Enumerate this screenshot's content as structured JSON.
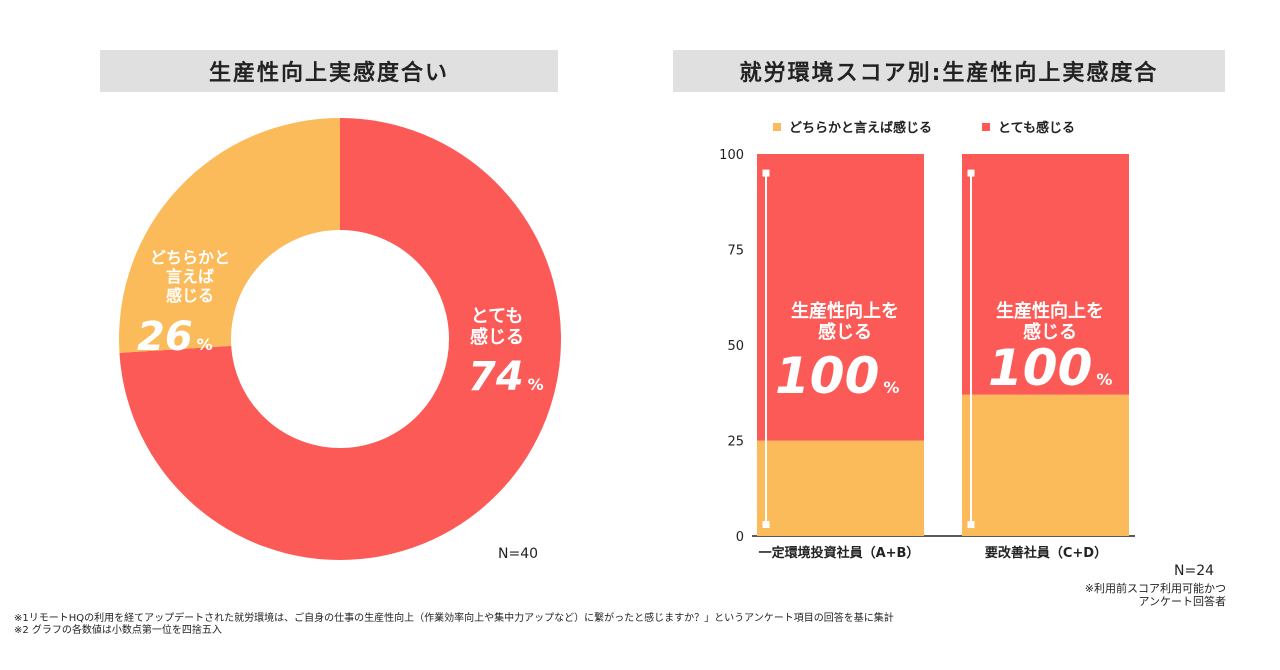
{
  "colors": {
    "red": "#fb5a57",
    "orange": "#fcbb5a",
    "title_bg": "#e0e0e0"
  },
  "left": {
    "title": "生産性向上実感度合い",
    "n_label": "N=40"
  },
  "right": {
    "title": "就労環境スコア別:生産性向上実感度合",
    "n_label": "N=24",
    "note_lines": [
      "※利用前スコア利用可能かつ",
      "アンケート回答者"
    ]
  },
  "footnotes": [
    "※1リモートHQの利用を経てアップデートされた就労環境は、ご自身の仕事の生産性向上（作業効率向上や集中力アップなど）に繋がったと感じますか？」というアンケート項目の回答を基に集計",
    "※2 グラフの各数値は小数点第一位を四捨五入"
  ],
  "chart_data": [
    {
      "type": "pie",
      "title": "生産性向上実感度合い",
      "slices": [
        {
          "label_lines": [
            "とても",
            "感じる"
          ],
          "value": 74,
          "value_text": "74",
          "unit": "%",
          "color": "#fb5a57"
        },
        {
          "label_lines": [
            "どちらかと",
            "言えば",
            "感じる"
          ],
          "value": 26,
          "value_text": "26",
          "unit": "%",
          "color": "#fcbb5a"
        }
      ]
    },
    {
      "type": "bar",
      "stacked": true,
      "title": "就労環境スコア別:生産性向上実感度合",
      "categories": [
        "一定環境投資社員（A+B）",
        "要改善社員（C+D）"
      ],
      "series": [
        {
          "name": "どちらかと言えば感じる",
          "color": "#fcbb5a",
          "values": [
            25,
            37
          ]
        },
        {
          "name": "とても感じる",
          "color": "#fb5a57",
          "values": [
            75,
            63
          ]
        }
      ],
      "ylim": [
        0,
        100
      ],
      "yticks": [
        "0",
        "25",
        "50",
        "75",
        "100"
      ],
      "range_markers": [
        {
          "low": 3,
          "high": 95
        },
        {
          "low": 3,
          "high": 95
        }
      ],
      "bar_annotation": {
        "lines": [
          "生産性向上を",
          "感じる"
        ],
        "value_text": "100",
        "unit": "%"
      },
      "legend_position": "top"
    }
  ]
}
